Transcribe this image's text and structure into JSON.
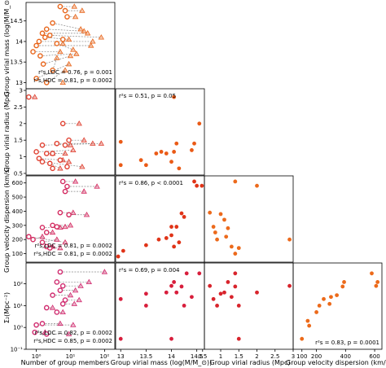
{
  "colors": {
    "open_face": "#ffffff",
    "panels": {
      "mass_members": "#e8651a",
      "radius_members": "#e04030",
      "vdisp_members": "#d42a60",
      "sigma_members": "#d02a6e",
      "radius_mass": "#ea5a16",
      "vdisp_mass": "#e03418",
      "vdisp_radius": "#ec6a1c",
      "sigma_mass": "#d81e3c",
      "sigma_radius": "#d8242c",
      "sigma_vdisp": "#ec6a1a"
    }
  },
  "chart_data": [
    {
      "panel": "mass_members",
      "type": "scatter",
      "xscale": "log",
      "xlim": [
        0.5,
        200
      ],
      "ylim": [
        12.85,
        14.95
      ],
      "ylabel": "Group virial mass (log(M/M_⊙))",
      "yticks": [
        13.0,
        13.5,
        14.0,
        14.5
      ],
      "circles": [
        [
          5,
          14.85
        ],
        [
          7,
          14.75
        ],
        [
          8,
          14.6
        ],
        [
          3,
          14.45
        ],
        [
          2,
          14.3
        ],
        [
          1.5,
          14.2
        ],
        [
          2.5,
          14.15
        ],
        [
          1.8,
          14.1
        ],
        [
          1.2,
          14.0
        ],
        [
          6,
          14.05
        ],
        [
          1,
          13.9
        ],
        [
          4,
          13.95
        ],
        [
          0.8,
          13.75
        ],
        [
          1.3,
          13.65
        ],
        [
          1.6,
          13.45
        ],
        [
          3,
          13.3
        ],
        [
          1,
          13.1
        ],
        [
          2,
          13.0
        ]
      ],
      "triangles": [
        [
          13,
          14.85
        ],
        [
          22,
          14.75
        ],
        [
          14,
          14.6
        ],
        [
          20,
          14.3
        ],
        [
          25,
          14.25
        ],
        [
          32,
          14.2
        ],
        [
          80,
          14.1
        ],
        [
          9,
          14.05
        ],
        [
          45,
          14.0
        ],
        [
          6,
          13.95
        ],
        [
          40,
          13.9
        ],
        [
          12,
          13.8
        ],
        [
          5,
          13.75
        ],
        [
          15,
          13.7
        ],
        [
          10,
          13.65
        ],
        [
          4,
          13.6
        ],
        [
          9,
          13.45
        ],
        [
          7,
          13.3
        ],
        [
          6,
          13.0
        ]
      ],
      "stats": [
        {
          "label": "r²s,LDC = 0.76, p = 0.001"
        },
        {
          "label": "r²s,HDC = 0.81, p = 0.0002"
        }
      ]
    },
    {
      "panel": "radius_members",
      "type": "scatter",
      "xscale": "log",
      "xlim": [
        0.5,
        200
      ],
      "ylim": [
        0.45,
        3.05
      ],
      "ylabel": "Group virial radius (Mpc)",
      "yticks": [
        0.5,
        1.0,
        1.5,
        2.0,
        2.5,
        3.0
      ],
      "circles": [
        [
          0.6,
          2.8
        ],
        [
          6,
          2.0
        ],
        [
          9,
          1.5
        ],
        [
          4,
          1.4
        ],
        [
          1.5,
          1.35
        ],
        [
          7,
          1.35
        ],
        [
          1,
          1.15
        ],
        [
          2,
          1.1
        ],
        [
          3,
          1.1
        ],
        [
          1.2,
          0.95
        ],
        [
          5,
          0.9
        ],
        [
          1.5,
          0.85
        ],
        [
          2.5,
          0.8
        ],
        [
          8,
          0.7
        ],
        [
          3,
          0.65
        ]
      ],
      "triangles": [
        [
          0.9,
          2.8
        ],
        [
          18,
          2.0
        ],
        [
          25,
          1.5
        ],
        [
          45,
          1.4
        ],
        [
          80,
          1.4
        ],
        [
          10,
          1.35
        ],
        [
          12,
          1.2
        ],
        [
          7,
          1.1
        ],
        [
          3,
          1.1
        ],
        [
          6,
          0.9
        ],
        [
          9,
          0.85
        ],
        [
          22,
          0.7
        ],
        [
          5,
          0.65
        ]
      ],
      "stats": []
    },
    {
      "panel": "vdisp_members",
      "type": "scatter",
      "xscale": "log",
      "xlim": [
        0.5,
        200
      ],
      "ylim": [
        40,
        650
      ],
      "ylabel": "Group velocity dispersion (km/s)",
      "yticks": [
        100,
        200,
        300,
        400,
        500,
        600
      ],
      "circles": [
        [
          6,
          610
        ],
        [
          8,
          575
        ],
        [
          7,
          540
        ],
        [
          5,
          390
        ],
        [
          9,
          375
        ],
        [
          3,
          300
        ],
        [
          4,
          290
        ],
        [
          1.5,
          285
        ],
        [
          2,
          250
        ],
        [
          1.5,
          180
        ],
        [
          0.8,
          200
        ],
        [
          0.6,
          220
        ],
        [
          2,
          150
        ],
        [
          2.5,
          140
        ]
      ],
      "triangles": [
        [
          14,
          610
        ],
        [
          60,
          575
        ],
        [
          25,
          540
        ],
        [
          12,
          390
        ],
        [
          30,
          375
        ],
        [
          10,
          300
        ],
        [
          7,
          290
        ],
        [
          5,
          285
        ],
        [
          3,
          250
        ],
        [
          4,
          200
        ],
        [
          1.5,
          220
        ],
        [
          7,
          180
        ],
        [
          3,
          150
        ],
        [
          5,
          140
        ]
      ],
      "stats": [
        {
          "label": "r²s,LDC = 0.81, p = 0.0002"
        },
        {
          "label": "r²s,HDC = 0.81, p = 0.0002"
        }
      ]
    },
    {
      "panel": "sigma_members",
      "type": "scatter",
      "xscale": "log",
      "xlim": [
        0.5,
        200
      ],
      "yscale": "log",
      "ylim": [
        0.1,
        900
      ],
      "ylabel": "Σ₂(Mpc⁻²)",
      "yticks": [
        0.1,
        1,
        10,
        100
      ],
      "yticklabels": [
        "10⁻¹",
        "10⁰",
        "10¹",
        "10²"
      ],
      "xticks": [
        1,
        10,
        100
      ],
      "xticklabels": [
        "10⁰",
        "10¹",
        "10²"
      ],
      "xlabel": "Number of group members",
      "circles": [
        [
          5,
          350
        ],
        [
          4,
          120
        ],
        [
          6,
          80
        ],
        [
          5,
          50
        ],
        [
          3,
          30
        ],
        [
          7,
          18
        ],
        [
          6,
          12
        ],
        [
          2,
          8
        ],
        [
          4,
          5
        ],
        [
          1.5,
          1.5
        ],
        [
          1,
          1.3
        ],
        [
          0.9,
          0.6
        ],
        [
          2,
          0.5
        ]
      ],
      "triangles": [
        [
          100,
          350
        ],
        [
          35,
          120
        ],
        [
          20,
          80
        ],
        [
          14,
          50
        ],
        [
          10,
          30
        ],
        [
          18,
          18
        ],
        [
          13,
          12
        ],
        [
          3,
          8
        ],
        [
          6,
          5
        ],
        [
          5,
          1.5
        ],
        [
          12,
          1.3
        ],
        [
          1.8,
          0.6
        ],
        [
          9,
          0.5
        ]
      ],
      "stats": [
        {
          "label": "r²s,LDC = 0.82, p = 0.0002"
        },
        {
          "label": "r²s,HDC = 0.85, p = 0.0002"
        }
      ]
    },
    {
      "panel": "radius_mass",
      "type": "scatter",
      "xlim": [
        12.9,
        14.65
      ],
      "ylim": [
        0.45,
        3.05
      ],
      "points": [
        [
          13.0,
          1.45
        ],
        [
          13.0,
          0.75
        ],
        [
          13.4,
          0.9
        ],
        [
          13.5,
          0.75
        ],
        [
          13.7,
          1.1
        ],
        [
          13.8,
          1.15
        ],
        [
          13.9,
          1.1
        ],
        [
          14.0,
          0.85
        ],
        [
          14.05,
          1.15
        ],
        [
          14.1,
          1.4
        ],
        [
          14.15,
          0.65
        ],
        [
          14.4,
          1.2
        ],
        [
          14.45,
          1.4
        ],
        [
          14.55,
          2.0
        ],
        [
          14.05,
          2.8
        ]
      ],
      "stats": [
        {
          "label": "r²s = 0.51, p = 0.05"
        }
      ]
    },
    {
      "panel": "vdisp_mass",
      "type": "scatter",
      "xlim": [
        12.9,
        14.65
      ],
      "ylim": [
        40,
        650
      ],
      "points": [
        [
          12.95,
          80
        ],
        [
          13.05,
          120
        ],
        [
          13.5,
          160
        ],
        [
          13.75,
          200
        ],
        [
          13.9,
          210
        ],
        [
          14.0,
          230
        ],
        [
          14.05,
          150
        ],
        [
          14.1,
          290
        ],
        [
          14.0,
          290
        ],
        [
          14.15,
          180
        ],
        [
          14.2,
          385
        ],
        [
          14.25,
          360
        ],
        [
          14.45,
          610
        ],
        [
          14.5,
          580
        ],
        [
          14.6,
          580
        ]
      ],
      "stats": [
        {
          "label": "r²s = 0.86, p < 0.0001"
        }
      ]
    },
    {
      "panel": "vdisp_radius",
      "type": "scatter",
      "xlim": [
        0.55,
        3.0
      ],
      "ylim": [
        40,
        650
      ],
      "points": [
        [
          0.7,
          390
        ],
        [
          0.8,
          290
        ],
        [
          0.85,
          250
        ],
        [
          0.9,
          200
        ],
        [
          1.0,
          380
        ],
        [
          1.1,
          340
        ],
        [
          1.15,
          220
        ],
        [
          1.2,
          280
        ],
        [
          1.3,
          150
        ],
        [
          1.4,
          100
        ],
        [
          1.4,
          610
        ],
        [
          1.5,
          140
        ],
        [
          2.0,
          580
        ],
        [
          2.9,
          200
        ]
      ],
      "stats": []
    },
    {
      "panel": "sigma_mass",
      "type": "scatter",
      "xlim": [
        12.9,
        14.65
      ],
      "yscale": "log",
      "ylim": [
        0.1,
        900
      ],
      "xticks": [
        13.0,
        13.5,
        14.0,
        14.5
      ],
      "xlabel": "Group virial mass (log(M/M_⊙))",
      "points": [
        [
          13.0,
          0.3
        ],
        [
          13.0,
          20
        ],
        [
          13.5,
          10
        ],
        [
          13.5,
          35
        ],
        [
          13.9,
          40
        ],
        [
          14.0,
          80
        ],
        [
          14.05,
          120
        ],
        [
          14.1,
          40
        ],
        [
          14.2,
          75
        ],
        [
          14.25,
          10
        ],
        [
          14.3,
          300
        ],
        [
          14.4,
          25
        ],
        [
          14.55,
          300
        ],
        [
          14.0,
          0.3
        ]
      ],
      "stats": [
        {
          "label": "r²s = 0.69, p = 0.004"
        }
      ]
    },
    {
      "panel": "sigma_radius",
      "type": "scatter",
      "xlim": [
        0.55,
        3.0
      ],
      "yscale": "log",
      "ylim": [
        0.1,
        900
      ],
      "xticks": [
        0.5,
        1.0,
        1.5,
        2.0,
        2.5,
        3.0
      ],
      "xlabel": "Group virial radius (Mpc)",
      "points": [
        [
          0.7,
          80
        ],
        [
          0.8,
          20
        ],
        [
          0.9,
          10
        ],
        [
          1.0,
          35
        ],
        [
          1.1,
          40
        ],
        [
          1.2,
          120
        ],
        [
          1.3,
          25
        ],
        [
          1.4,
          300
        ],
        [
          1.4,
          75
        ],
        [
          1.5,
          10
        ],
        [
          1.5,
          0.3
        ],
        [
          2.0,
          40
        ],
        [
          2.9,
          80
        ]
      ],
      "stats": []
    },
    {
      "panel": "sigma_vdisp",
      "type": "scatter",
      "xlim": [
        40,
        650
      ],
      "yscale": "log",
      "ylim": [
        0.1,
        900
      ],
      "xticks": [
        100,
        200,
        400,
        600
      ],
      "xticklabels": [
        "100",
        "200",
        "400",
        "600"
      ],
      "xlabel": "Group velocity dispersion (km/s)",
      "points": [
        [
          100,
          0.3
        ],
        [
          140,
          2
        ],
        [
          150,
          1.2
        ],
        [
          200,
          5
        ],
        [
          220,
          10
        ],
        [
          250,
          20
        ],
        [
          290,
          12
        ],
        [
          300,
          25
        ],
        [
          340,
          30
        ],
        [
          380,
          75
        ],
        [
          390,
          120
        ],
        [
          580,
          300
        ],
        [
          610,
          80
        ],
        [
          620,
          120
        ]
      ],
      "stats": [
        {
          "label": "r²s = 0.83, p = 0.0001"
        }
      ]
    }
  ]
}
